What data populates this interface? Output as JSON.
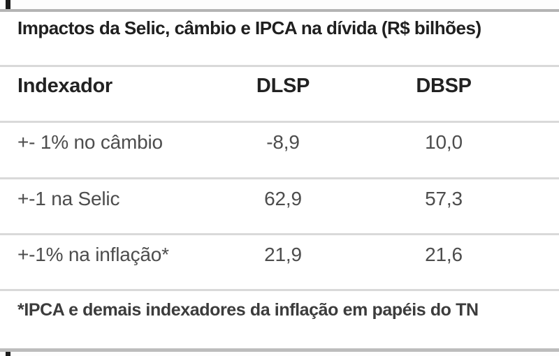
{
  "table": {
    "title": "Impactos da Selic, câmbio e IPCA na dívida (R$ bilhões)",
    "columns": [
      "Indexador",
      "DLSP",
      "DBSP"
    ],
    "rows": [
      {
        "label": "+- 1% no câmbio",
        "dlsp": "-8,9",
        "dbsp": "10,0"
      },
      {
        "label": "+-1 na Selic",
        "dlsp": "62,9",
        "dbsp": "57,3"
      },
      {
        "label": "+-1% na inflação*",
        "dlsp": "21,9",
        "dbsp": "21,6"
      }
    ],
    "footnote": "*IPCA e demais indexadores da inflação em papéis do TN"
  },
  "chart_data": {
    "type": "table",
    "title": "Impactos da Selic, câmbio e IPCA na dívida (R$ bilhões)",
    "columns": [
      "Indexador",
      "DLSP",
      "DBSP"
    ],
    "rows": [
      [
        "+- 1% no câmbio",
        -8.9,
        10.0
      ],
      [
        "+-1 na Selic",
        62.9,
        57.3
      ],
      [
        "+-1% na inflação*",
        21.9,
        21.6
      ]
    ],
    "footnote": "*IPCA e demais indexadores da inflação em papéis do TN"
  },
  "colors": {
    "text_strong": "#1f1f1f",
    "text_data": "#4d4d4d",
    "border_outer": "#b4b4b4",
    "border_inner": "#d9d9d9",
    "background": "#ffffff"
  }
}
